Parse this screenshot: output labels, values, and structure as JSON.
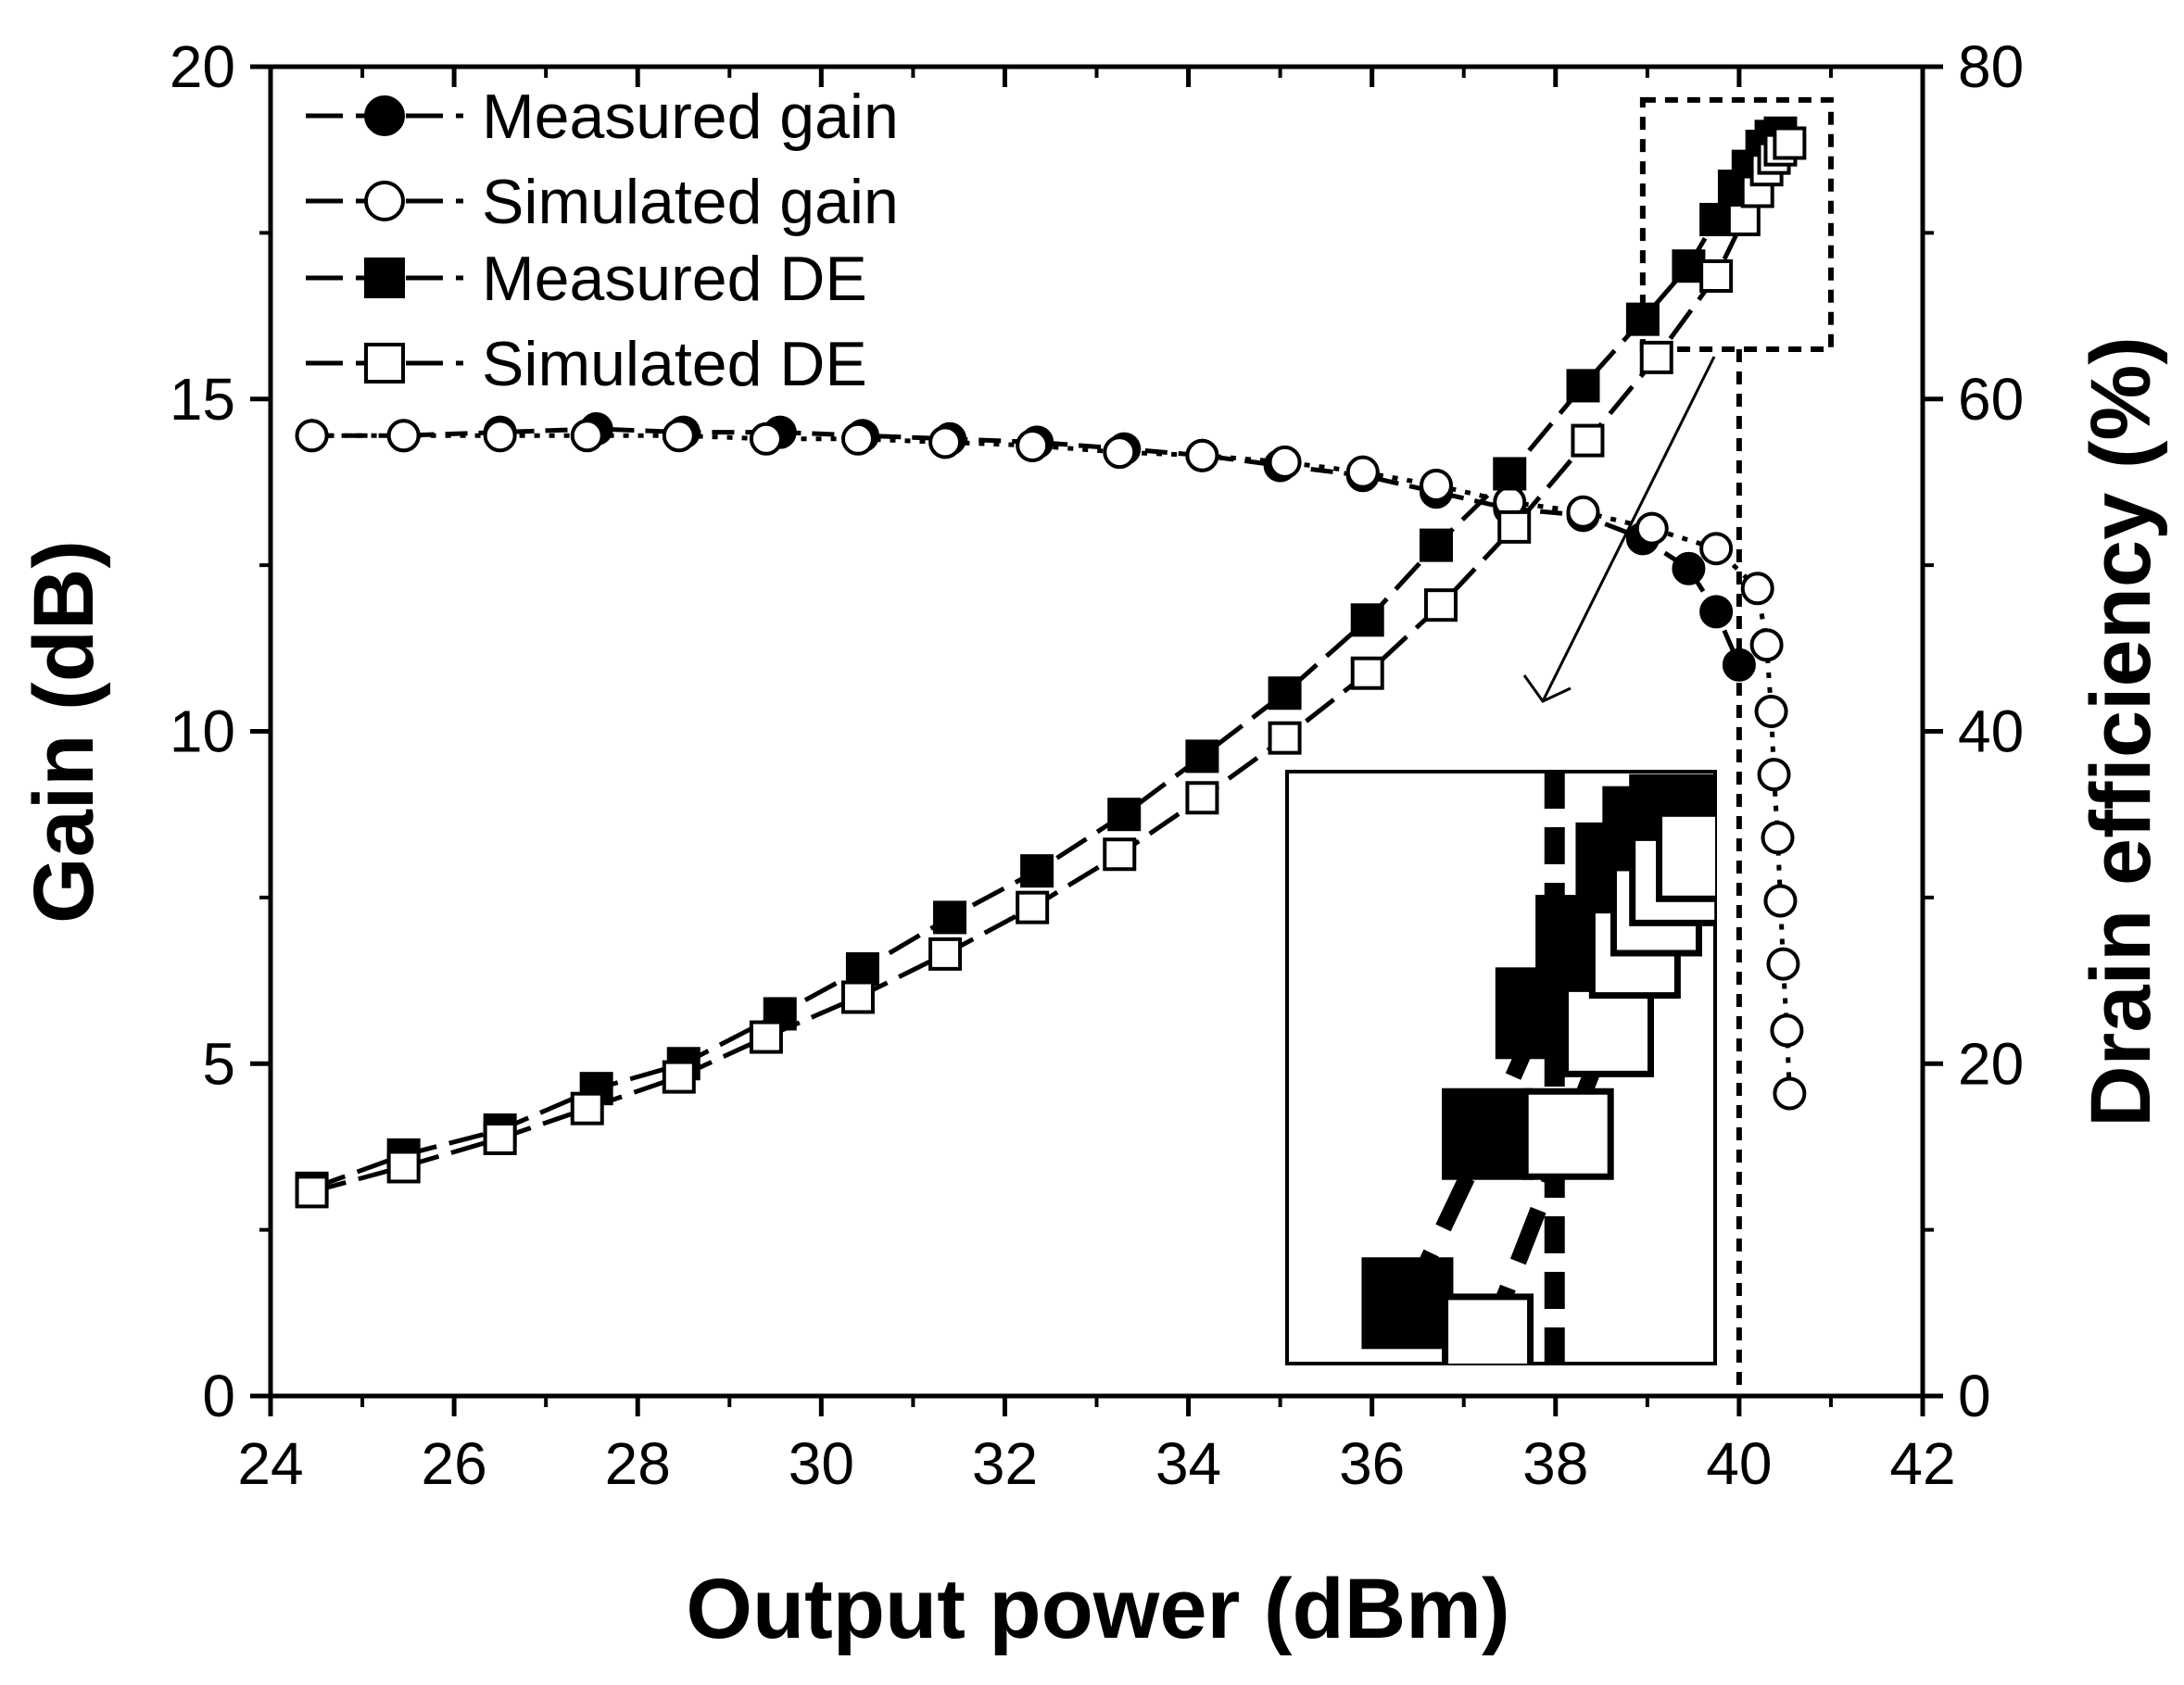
{
  "chart_data": {
    "type": "line",
    "xlabel": "Output power (dBm)",
    "ylabel": "Gain (dB)",
    "y2label": "Drain efficiency (%)",
    "xlim": [
      24,
      42
    ],
    "ylim": [
      0,
      20
    ],
    "y2lim": [
      0,
      80
    ],
    "xticks": [
      24,
      26,
      28,
      30,
      32,
      34,
      36,
      38,
      40,
      42
    ],
    "yticks": [
      0,
      5,
      10,
      15,
      20
    ],
    "y2ticks": [
      0,
      20,
      40,
      60,
      80
    ],
    "grid": false,
    "legend_position": "top-left",
    "series": [
      {
        "name": "Measured gain",
        "axis": "left",
        "marker": "circle-filled",
        "x": [
          24.45,
          25.45,
          26.5,
          27.55,
          28.5,
          29.55,
          30.45,
          31.4,
          32.35,
          33.3,
          34.15,
          35.0,
          35.9,
          36.7,
          37.5,
          38.3,
          38.95,
          39.45,
          39.75,
          40.0
        ],
        "y": [
          14.45,
          14.45,
          14.5,
          14.55,
          14.5,
          14.5,
          14.45,
          14.4,
          14.35,
          14.25,
          14.15,
          14.0,
          13.85,
          13.6,
          13.35,
          13.25,
          12.9,
          12.45,
          11.8,
          11.0
        ]
      },
      {
        "name": "Simulated gain",
        "axis": "left",
        "marker": "circle-open",
        "x": [
          24.45,
          25.45,
          26.5,
          27.45,
          28.45,
          29.4,
          30.4,
          31.35,
          32.3,
          33.25,
          34.15,
          35.05,
          35.9,
          36.7,
          37.5,
          38.3,
          39.05,
          39.75,
          40.2,
          40.3,
          40.35,
          40.38,
          40.42,
          40.45,
          40.48,
          40.52,
          40.55
        ],
        "y": [
          14.45,
          14.45,
          14.45,
          14.45,
          14.45,
          14.4,
          14.4,
          14.35,
          14.3,
          14.2,
          14.15,
          14.05,
          13.9,
          13.7,
          13.45,
          13.3,
          13.05,
          12.75,
          12.15,
          11.3,
          10.3,
          9.35,
          8.4,
          7.45,
          6.5,
          5.5,
          4.55
        ]
      },
      {
        "name": "Measured DE",
        "axis": "right",
        "marker": "square-filled",
        "x": [
          24.45,
          25.45,
          26.5,
          27.55,
          28.5,
          29.55,
          30.45,
          31.4,
          32.35,
          33.3,
          34.15,
          35.05,
          35.95,
          36.7,
          37.5,
          38.3,
          38.95,
          39.45,
          39.75,
          39.95,
          40.1,
          40.25,
          40.35,
          40.45
        ],
        "y": [
          12.5,
          14.5,
          16.0,
          18.5,
          20.0,
          23.0,
          25.7,
          28.8,
          31.6,
          35.0,
          38.5,
          42.3,
          46.7,
          51.2,
          55.5,
          60.8,
          64.8,
          68.0,
          70.8,
          72.8,
          74.0,
          75.2,
          75.8,
          76.0
        ]
      },
      {
        "name": "Simulated DE",
        "axis": "right",
        "marker": "square-open",
        "x": [
          24.45,
          25.45,
          26.5,
          27.45,
          28.45,
          29.4,
          30.4,
          31.35,
          32.3,
          33.25,
          34.15,
          35.05,
          35.95,
          36.75,
          37.55,
          38.35,
          39.1,
          39.75,
          40.05,
          40.2,
          40.3,
          40.38,
          40.45,
          40.55
        ],
        "y": [
          12.3,
          13.8,
          15.5,
          17.3,
          19.2,
          21.6,
          24.0,
          26.6,
          29.4,
          32.6,
          36.0,
          39.6,
          43.5,
          47.6,
          52.3,
          57.5,
          62.5,
          67.4,
          70.8,
          72.5,
          73.8,
          74.5,
          75.0,
          75.4
        ]
      }
    ],
    "annotations": [
      {
        "type": "reference-line",
        "style": "dashed",
        "orientation": "vertical",
        "x": 40.0
      },
      {
        "type": "zoom-box",
        "style": "dashed",
        "x_range": [
          38.95,
          41.0
        ],
        "y2_range": [
          63,
          78
        ]
      },
      {
        "type": "inset",
        "description": "magnified view of the zoom box"
      }
    ]
  }
}
